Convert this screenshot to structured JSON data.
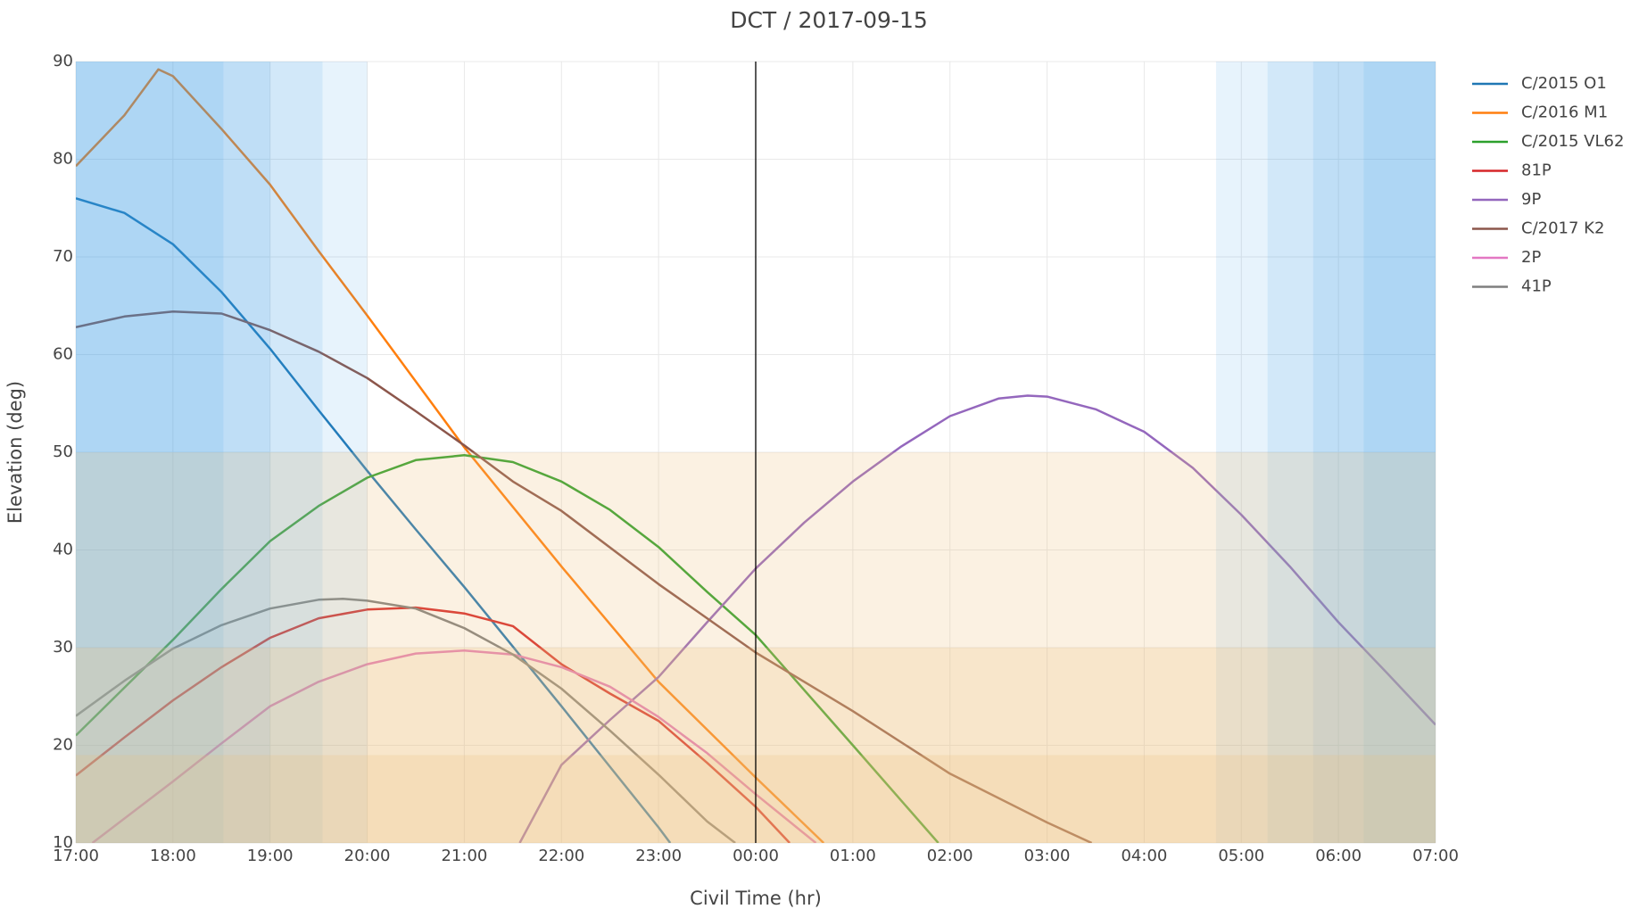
{
  "chart_data": {
    "type": "line",
    "title": "DCT / 2017-09-15",
    "x_label": "Civil Time (hr)",
    "y_label": "Elevation (deg)",
    "xlim": [
      17,
      31
    ],
    "xticks": [
      {
        "value": 17,
        "label": "17:00"
      },
      {
        "value": 18,
        "label": "18:00"
      },
      {
        "value": 19,
        "label": "19:00"
      },
      {
        "value": 20,
        "label": "20:00"
      },
      {
        "value": 21,
        "label": "21:00"
      },
      {
        "value": 22,
        "label": "22:00"
      },
      {
        "value": 23,
        "label": "23:00"
      },
      {
        "value": 24,
        "label": "00:00"
      },
      {
        "value": 25,
        "label": "01:00"
      },
      {
        "value": 26,
        "label": "02:00"
      },
      {
        "value": 27,
        "label": "03:00"
      },
      {
        "value": 28,
        "label": "04:00"
      },
      {
        "value": 29,
        "label": "05:00"
      },
      {
        "value": 30,
        "label": "06:00"
      },
      {
        "value": 31,
        "label": "07:00"
      }
    ],
    "ylim": [
      10,
      90
    ],
    "yticks": [
      10,
      20,
      30,
      40,
      50,
      60,
      70,
      80,
      90
    ],
    "grid": true,
    "legend_position": "right",
    "vertical_line": 24,
    "time_bands": {
      "color": "#3aa0e8",
      "opacity": 0.12,
      "ranges": [
        [
          17,
          20
        ],
        [
          17,
          19.54
        ],
        [
          17,
          19
        ],
        [
          17,
          18.52
        ],
        [
          28.74,
          31
        ],
        [
          29.27,
          31
        ],
        [
          29.74,
          31
        ],
        [
          30.26,
          31
        ]
      ]
    },
    "elevation_bands": {
      "color": "#eebf7a",
      "opacity": 0.22,
      "ranges": [
        [
          10,
          50
        ],
        [
          10,
          30
        ],
        [
          10,
          19
        ]
      ]
    },
    "series": [
      {
        "name": "C/2015 O1",
        "color": "#1f77b4",
        "x": [
          17,
          17.5,
          18,
          18.5,
          19,
          19.5,
          20,
          20.5,
          21,
          21.5,
          22,
          22.5,
          23,
          23.12
        ],
        "values": [
          76,
          74.5,
          71.3,
          66.4,
          60.6,
          54.3,
          48.1,
          42.1,
          36.2,
          30.1,
          24,
          17.8,
          11.6,
          10
        ]
      },
      {
        "name": "C/2016 M1",
        "color": "#ff7f0e",
        "x": [
          17,
          17.5,
          17.85,
          18,
          18.5,
          19,
          19.5,
          20,
          21,
          22,
          23,
          24,
          24.7
        ],
        "values": [
          79.3,
          84.5,
          89.2,
          88.5,
          83.1,
          77.4,
          70.6,
          64,
          50.5,
          38.3,
          26.5,
          16.7,
          10
        ]
      },
      {
        "name": "C/2015 VL62",
        "color": "#2ca02c",
        "x": [
          17,
          17.5,
          18,
          18.5,
          19,
          19.5,
          20,
          20.5,
          21,
          21.5,
          22,
          22.5,
          23,
          23.5,
          24,
          25,
          25.88
        ],
        "values": [
          21,
          25.9,
          30.8,
          36,
          40.9,
          44.5,
          47.4,
          49.2,
          49.7,
          49,
          47,
          44.1,
          40.3,
          35.7,
          31.3,
          20,
          10
        ]
      },
      {
        "name": "81P",
        "color": "#d62728",
        "x": [
          17,
          17.5,
          18,
          18.5,
          19,
          19.5,
          20,
          20.5,
          21,
          21.5,
          22,
          22.5,
          23,
          23.5,
          24,
          24.35
        ],
        "values": [
          16.9,
          20.8,
          24.6,
          28,
          31,
          33,
          33.9,
          34.1,
          33.5,
          32.2,
          28.3,
          25.3,
          22.5,
          18.2,
          13.7,
          10
        ]
      },
      {
        "name": "9P",
        "color": "#9467bd",
        "x": [
          21.57,
          22,
          22.5,
          23,
          23.5,
          24,
          24.5,
          25,
          25.5,
          26,
          26.5,
          26.8,
          27,
          27.5,
          28,
          28.5,
          29,
          29.5,
          30,
          30.5,
          31
        ],
        "values": [
          10,
          18,
          22.6,
          27,
          32.6,
          38.1,
          42.8,
          47,
          50.6,
          53.7,
          55.5,
          55.8,
          55.7,
          54.4,
          52.1,
          48.4,
          43.6,
          38.3,
          32.6,
          27.4,
          22.1
        ]
      },
      {
        "name": "C/2017 K2",
        "color": "#8c564b",
        "x": [
          17,
          17.5,
          18,
          18.5,
          19,
          19.5,
          20,
          20.5,
          21,
          21.5,
          22,
          23,
          24,
          25,
          26,
          27,
          27.46
        ],
        "values": [
          62.8,
          63.9,
          64.4,
          64.2,
          62.5,
          60.3,
          57.6,
          54.2,
          50.7,
          47,
          44,
          36.5,
          29.5,
          23.5,
          17.1,
          12.1,
          10
        ]
      },
      {
        "name": "2P",
        "color": "#e377c2",
        "x": [
          17.17,
          18,
          18.5,
          19,
          19.5,
          20,
          20.5,
          21,
          21.5,
          22,
          22.5,
          23,
          23.5,
          24,
          24.62
        ],
        "values": [
          10,
          16.3,
          20.2,
          24,
          26.5,
          28.3,
          29.4,
          29.7,
          29.3,
          28,
          26,
          22.9,
          19.2,
          15,
          10
        ]
      },
      {
        "name": "41P",
        "color": "#7f7f7f",
        "x": [
          17,
          17.5,
          18,
          18.5,
          19,
          19.5,
          19.75,
          20,
          20.5,
          21,
          21.5,
          22,
          22.5,
          23,
          23.5,
          23.79
        ],
        "values": [
          23,
          26.6,
          29.9,
          32.3,
          34,
          34.9,
          35,
          34.8,
          34,
          32,
          29.3,
          25.8,
          21.5,
          17,
          12.2,
          10
        ]
      }
    ]
  }
}
